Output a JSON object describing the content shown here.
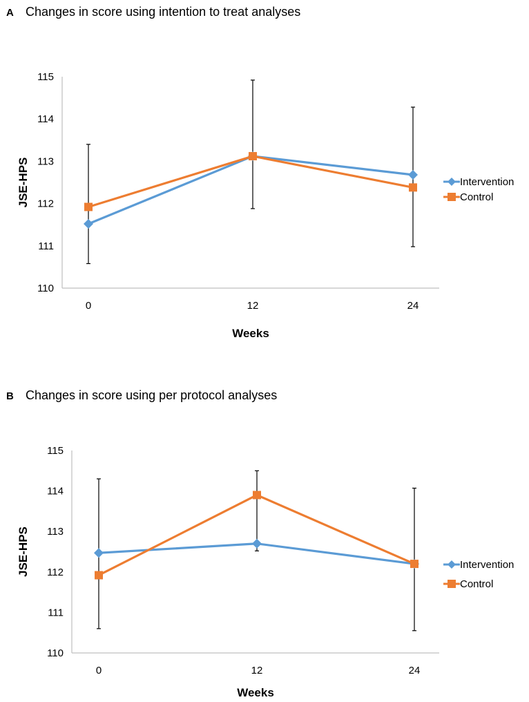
{
  "colors": {
    "intervention": "#5b9bd5",
    "control": "#ed7d31",
    "axis": "#bfbfbf",
    "errorbar": "#000000"
  },
  "chart_data": [
    {
      "type": "line",
      "panel_label": "A",
      "title": "Changes in score using intention to treat analyses",
      "xlabel": "Weeks",
      "ylabel": "JSE-HPS",
      "categories": [
        "0",
        "12",
        "24"
      ],
      "ylim": [
        110,
        115
      ],
      "yticks": [
        "110",
        "111",
        "112",
        "113",
        "114",
        "115"
      ],
      "legend_position": "right",
      "series": [
        {
          "name": "Intervention",
          "marker": "diamond",
          "values": [
            111.52,
            113.12,
            112.68
          ],
          "error_low": [
            110.58,
            111.88,
            110.98
          ],
          "error_high": [
            113.4,
            114.92,
            114.28
          ]
        },
        {
          "name": "Control",
          "marker": "square",
          "values": [
            111.92,
            113.12,
            112.38
          ]
        }
      ]
    },
    {
      "type": "line",
      "panel_label": "B",
      "title": "Changes in score using per protocol analyses",
      "xlabel": "Weeks",
      "ylabel": "JSE-HPS",
      "categories": [
        "0",
        "12",
        "24"
      ],
      "ylim": [
        110,
        115
      ],
      "yticks": [
        "110",
        "111",
        "112",
        "113",
        "114",
        "115"
      ],
      "legend_position": "right",
      "series": [
        {
          "name": "Intervention",
          "marker": "diamond",
          "values": [
            112.47,
            112.7,
            112.2
          ],
          "error_low": [
            110.6,
            112.52,
            110.55
          ],
          "error_high": [
            114.3,
            114.5,
            114.07
          ]
        },
        {
          "name": "Control",
          "marker": "square",
          "values": [
            111.92,
            113.9,
            112.2
          ]
        }
      ]
    }
  ]
}
